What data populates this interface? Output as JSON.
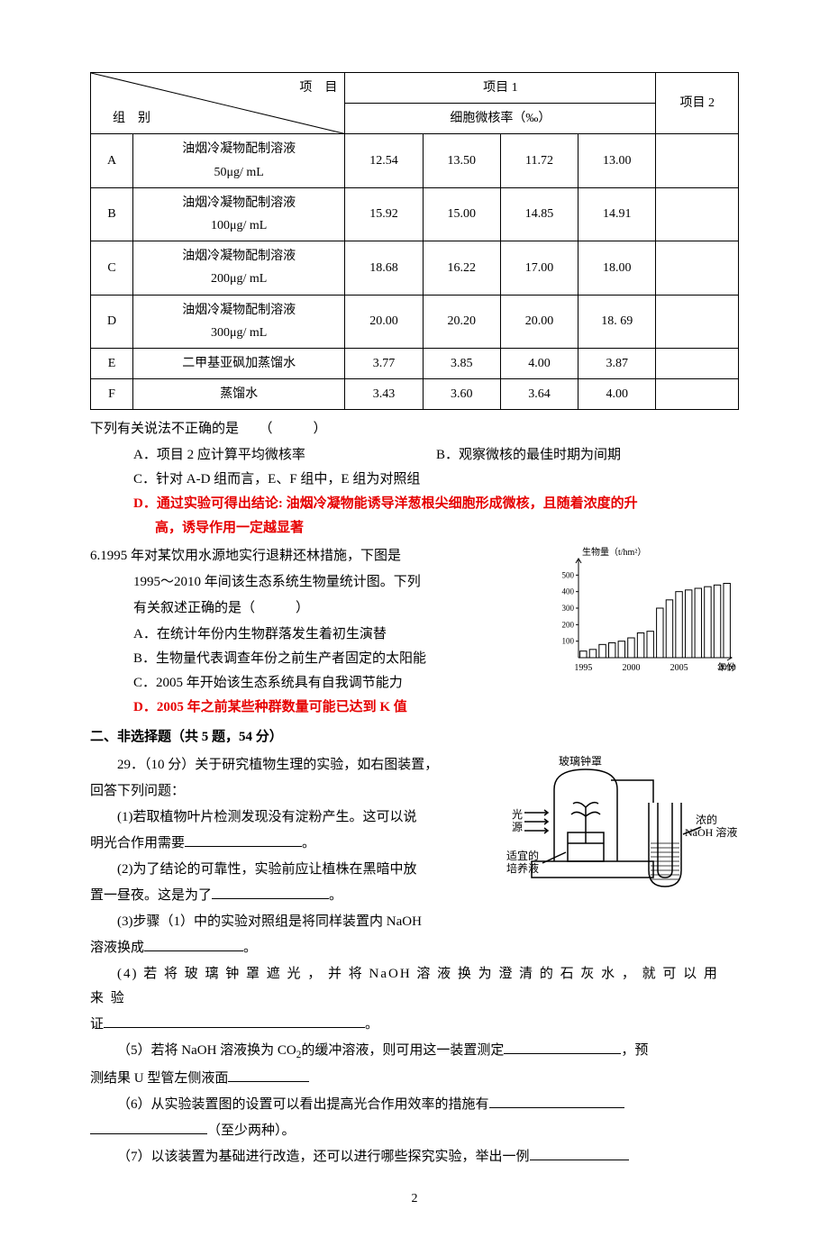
{
  "table": {
    "header_diag_top": "项　目",
    "header_diag_bot": "组　别",
    "header_col1": "项目 1",
    "header_col2": "项目 2",
    "header_rate": "细胞微核率（‰）",
    "rows": [
      {
        "g": "A",
        "desc": "油烟冷凝物配制溶液\n50μg/ mL",
        "v": [
          "12.54",
          "13.50",
          "11.72",
          "13.00"
        ]
      },
      {
        "g": "B",
        "desc": "油烟冷凝物配制溶液\n100μg/ mL",
        "v": [
          "15.92",
          "15.00",
          "14.85",
          "14.91"
        ]
      },
      {
        "g": "C",
        "desc": "油烟冷凝物配制溶液\n200μg/ mL",
        "v": [
          "18.68",
          "16.22",
          "17.00",
          "18.00"
        ]
      },
      {
        "g": "D",
        "desc": "油烟冷凝物配制溶液\n300μg/ mL",
        "v": [
          "20.00",
          "20.20",
          "20.00",
          "18. 69"
        ]
      },
      {
        "g": "E",
        "desc": "二甲基亚砜加蒸馏水",
        "v": [
          "3.77",
          "3.85",
          "4.00",
          "3.87"
        ]
      },
      {
        "g": "F",
        "desc": "蒸馏水",
        "v": [
          "3.43",
          "3.60",
          "3.64",
          "4.00"
        ]
      }
    ]
  },
  "q5": {
    "stem": "下列有关说法不正确的是　　（　　　）",
    "optA": "A．项目 2 应计算平均微核率",
    "optB": "B．观察微核的最佳时期为间期",
    "optC": "C．针对 A-D 组而言，E、F 组中，E 组为对照组",
    "optD_l1": "D．通过实验可得出结论: 油烟冷凝物能诱导洋葱根尖细胞形成微核，且随着浓度的升",
    "optD_l2": "高，诱导作用一定越显著"
  },
  "q6": {
    "num": "6.",
    "stem_l1": "1995 年对某饮用水源地实行退耕还林措施，下图是",
    "stem_l2": "1995～2010 年间该生态系统生物量统计图。下列",
    "stem_l3": "有关叙述正确的是（　　　）",
    "optA": "A．在统计年份内生物群落发生着初生演替",
    "optB": "B．生物量代表调查年份之前生产者固定的太阳能",
    "optC": "C．2005 年开始该生态系统具有自我调节能力",
    "optD": "D．2005 年之前某些种群数量可能已达到 K 值"
  },
  "chart": {
    "ylabel": "生物量（t/hm²）",
    "xlabel": "年份",
    "ymax": 600,
    "ytick": 100,
    "xticks": [
      "1995",
      "2000",
      "2005",
      "2010"
    ],
    "values": [
      40,
      50,
      80,
      90,
      100,
      120,
      150,
      160,
      300,
      350,
      400,
      410,
      420,
      430,
      440,
      450
    ],
    "bar_fill": "#ffffff",
    "bar_stroke": "#000000",
    "axis_color": "#000000",
    "bg": "#ffffff",
    "font_size": 10
  },
  "section2": "二、非选择题（共 5 题，54 分）",
  "q29": {
    "head": "29．（10 分）关于研究植物生理的实验，如右图装置，",
    "head2": "回答下列问题：",
    "p1": "(1)若取植物叶片检测发现没有淀粉产生。这可以说",
    "p1b": "明光合作用需要",
    "p1b_tail": "。",
    "p2": "(2)为了结论的可靠性，实验前应让植株在黑暗中放",
    "p2b": "置一昼夜。这是为了",
    "p2b_tail": "。",
    "p3a": "(3)步骤（1）中的实验对照组是将同样装置内 NaOH",
    "p3b": "溶液换成",
    "p3b_tail": "。",
    "p4a": "(4) 若 将 玻 璃 钟 罩 遮 光 ， 并 将 NaOH 溶 液 换 为 澄 清 的 石 灰 水 ， 就 可 以 用 来 验",
    "p4b": "证",
    "p4b_tail": "。",
    "p5a": "（5）若将 NaOH 溶液换为 CO",
    "p5a2": "的缓冲溶液，则可用这一装置测定",
    "p5a_tail": "，预",
    "p5b": "测结果 U 型管左侧液面",
    "p6a": "（6）从实验装置图的设置可以看出提高光合作用效率的措施有",
    "p6b_tail": "（至少两种）。",
    "p7a": "（7）以该装置为基础进行改造，还可以进行哪些探究实验，举出一例"
  },
  "diagram": {
    "label_bell": "玻璃钟罩",
    "label_light": "光\n源",
    "label_medium": "适宜的\n培养液",
    "label_naoh": "浓的\nNaOH 溶液",
    "stroke": "#000000"
  },
  "pagenum": "2"
}
